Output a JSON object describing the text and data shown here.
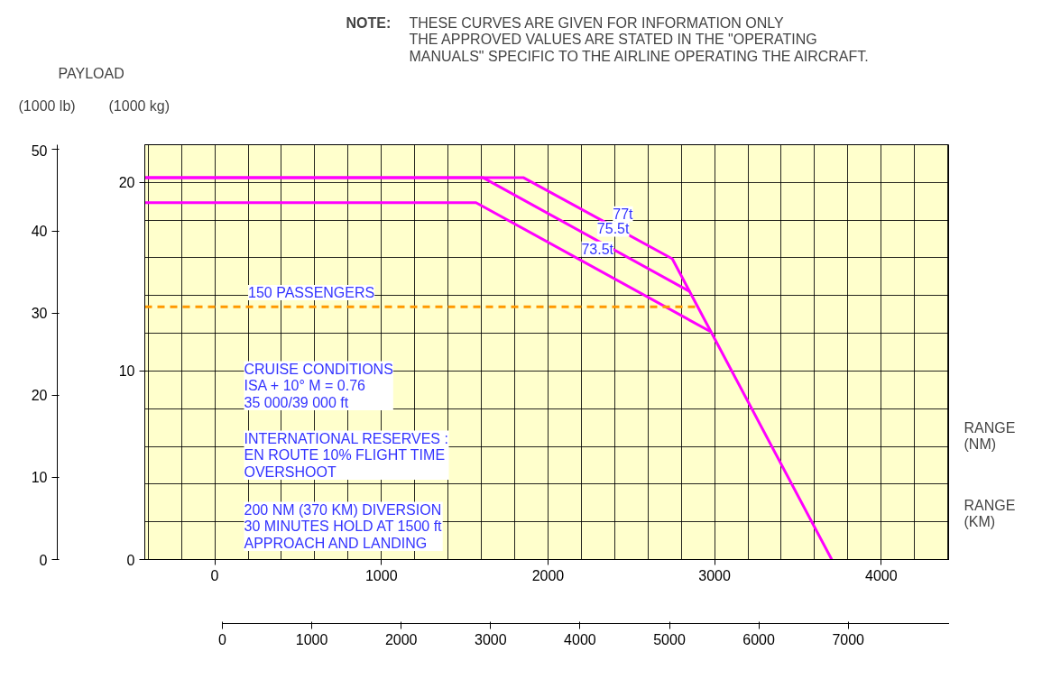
{
  "chart_data": {
    "type": "line",
    "xlabel": "RANGE\n(NM)",
    "x2label": "RANGE\n(KM)",
    "ylabel": "(1000 kg)",
    "y2label": "(1000 lb)",
    "xlim": [
      -420,
      4410
    ],
    "xticks": [
      0,
      1000,
      2000,
      3000,
      4000
    ],
    "x2lim": [
      -868,
      8133
    ],
    "x2ticks": [
      0,
      1000,
      2000,
      3000,
      4000,
      5000,
      6000,
      7000
    ],
    "ylim": [
      0,
      22.0
    ],
    "yticks": [
      0,
      10,
      20
    ],
    "y2lim": [
      0,
      50.5
    ],
    "y2ticks": [
      0,
      10,
      20,
      30,
      40,
      50
    ],
    "grid": true,
    "marker": "none",
    "line_style": "solid",
    "series": [
      {
        "name": "77t",
        "color": "#ff00ff",
        "x": [
          -420,
          1854,
          2746,
          3703
        ],
        "values": [
          20.25,
          20.25,
          15.95,
          0
        ]
      },
      {
        "name": "75.5t",
        "color": "#ff00ff",
        "x": [
          -420,
          1611,
          2854
        ],
        "values": [
          20.25,
          20.25,
          14.2
        ]
      },
      {
        "name": "73.5t",
        "color": "#ff00ff",
        "x": [
          -420,
          1568,
          2973
        ],
        "values": [
          18.93,
          18.93,
          12.1
        ]
      },
      {
        "name": "150 PASSENGERS",
        "color": "#ff9900",
        "line_style": "dashed",
        "x": [
          -420,
          2892
        ],
        "values": [
          13.4,
          13.4
        ]
      }
    ],
    "annotations": [
      "NOTE:",
      "THESE CURVES ARE GIVEN FOR INFORMATION ONLY\nTHE APPROVED VALUES ARE STATED IN THE \"OPERATING\nMANUALS\" SPECIFIC TO THE AIRLINE OPERATING THE AIRCRAFT.",
      "PAYLOAD",
      "CRUISE CONDITIONS\nISA + 10° M = 0.76\n35 000/39 000 ft",
      "INTERNATIONAL RESERVES :\nEN ROUTE 10% FLIGHT TIME\nOVERSHOOT",
      "200 NM (370 KM) DIVERSION\n30 MINUTES HOLD AT 1500 ft\nAPPROACH AND LANDING"
    ]
  }
}
